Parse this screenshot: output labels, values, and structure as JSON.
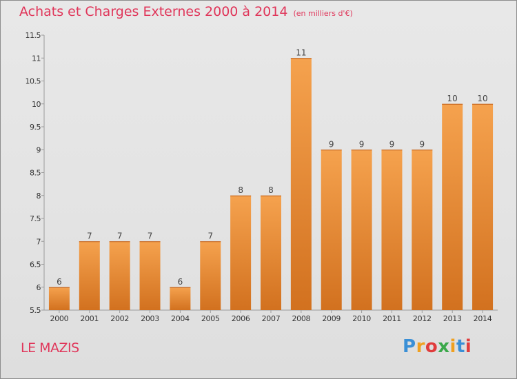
{
  "header": {
    "title": "Achats et Charges Externes 2000 à 2014",
    "unit": "(en milliers d'€)"
  },
  "footer": {
    "place": "LE MAZIS",
    "brand": "Proxiti"
  },
  "colors": {
    "title": "#e0365a",
    "bar_light": "#f5a24e",
    "bar_dark": "#d2711f",
    "brand_letters": [
      "#3a8fd6",
      "#f0a020",
      "#e03c3c",
      "#3aa84a",
      "#f0a020",
      "#3a8fd6",
      "#e03c3c"
    ]
  },
  "chart_data": {
    "type": "bar",
    "categories": [
      "2000",
      "2001",
      "2002",
      "2003",
      "2004",
      "2005",
      "2006",
      "2007",
      "2008",
      "2009",
      "2010",
      "2011",
      "2012",
      "2013",
      "2014"
    ],
    "values": [
      6,
      7,
      7,
      7,
      6,
      7,
      8,
      8,
      11,
      9,
      9,
      9,
      9,
      10,
      10
    ],
    "value_labels": [
      "6",
      "7",
      "7",
      "7",
      "6",
      "7",
      "8",
      "8",
      "11",
      "9",
      "9",
      "9",
      "9",
      "10",
      "10"
    ],
    "ylim": [
      5.5,
      11.5
    ],
    "yticks": [
      5.5,
      6,
      6.5,
      7,
      7.5,
      8,
      8.5,
      9,
      9.5,
      10,
      10.5,
      11,
      11.5
    ],
    "ytick_labels": [
      "5.5",
      "6",
      "6.5",
      "7",
      "7.5",
      "8",
      "8.5",
      "9",
      "9.5",
      "10",
      "10.5",
      "11",
      "11.5"
    ],
    "grid": false,
    "legend": "none"
  }
}
